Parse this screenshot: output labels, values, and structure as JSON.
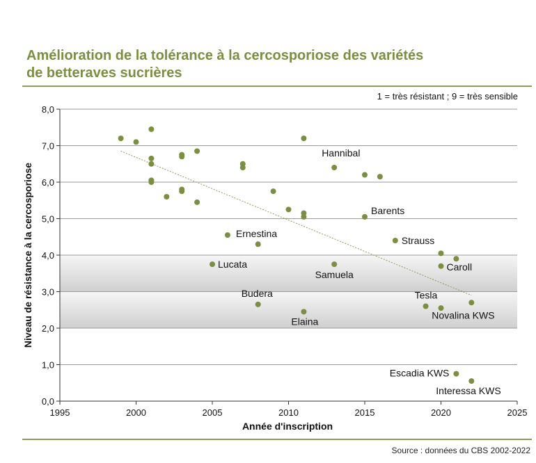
{
  "title_line1": "Amélioration de la tolérance à la cercosporiose des variétés",
  "title_line2": "de betteraves sucrières",
  "note": "1 = très résistant ; 9 = très sensible",
  "source": "Source : données du CBS 2002-2022",
  "colors": {
    "title": "#7b8f3f",
    "point": "#7b8f3f",
    "rule": "#8a9a5b",
    "band": "#cfcfcf",
    "trend": "#8a9a5b"
  },
  "chart_data": {
    "type": "scatter",
    "title": "Amélioration de la tolérance à la cercosporiose des variétés de betteraves sucrières",
    "xlabel": "Année d'inscription",
    "ylabel": "Niveau de résistance à la cercosporiose",
    "xlim": [
      1995,
      2025
    ],
    "ylim": [
      0,
      8
    ],
    "xticks": [
      "1995",
      "2000",
      "2005",
      "2010",
      "2015",
      "2020",
      "2025"
    ],
    "yticks": [
      "0,0",
      "1,0",
      "2,0",
      "3,0",
      "4,0",
      "5,0",
      "6,0",
      "7,0",
      "8,0"
    ],
    "grid": "horizontal",
    "bands": [
      [
        3.0,
        4.0
      ],
      [
        2.0,
        3.0
      ]
    ],
    "trendline": {
      "from": [
        1999,
        6.85
      ],
      "to": [
        2022,
        2.9
      ]
    },
    "points": [
      {
        "x": 1999,
        "y": 7.2,
        "label": ""
      },
      {
        "x": 2000,
        "y": 7.1,
        "label": ""
      },
      {
        "x": 2001,
        "y": 7.45,
        "label": ""
      },
      {
        "x": 2001,
        "y": 6.65,
        "label": ""
      },
      {
        "x": 2001,
        "y": 6.5,
        "label": ""
      },
      {
        "x": 2001,
        "y": 6.05,
        "label": ""
      },
      {
        "x": 2001,
        "y": 6.0,
        "label": ""
      },
      {
        "x": 2002,
        "y": 5.6,
        "label": ""
      },
      {
        "x": 2003,
        "y": 6.75,
        "label": ""
      },
      {
        "x": 2003,
        "y": 6.7,
        "label": ""
      },
      {
        "x": 2003,
        "y": 5.8,
        "label": ""
      },
      {
        "x": 2003,
        "y": 5.75,
        "label": ""
      },
      {
        "x": 2004,
        "y": 6.85,
        "label": ""
      },
      {
        "x": 2004,
        "y": 5.45,
        "label": ""
      },
      {
        "x": 2005,
        "y": 3.75,
        "label": "Lucata"
      },
      {
        "x": 2006,
        "y": 4.55,
        "label": "Ernestina"
      },
      {
        "x": 2007,
        "y": 6.5,
        "label": ""
      },
      {
        "x": 2007,
        "y": 6.4,
        "label": ""
      },
      {
        "x": 2008,
        "y": 4.3,
        "label": ""
      },
      {
        "x": 2008,
        "y": 2.65,
        "label": "Budera"
      },
      {
        "x": 2009,
        "y": 5.75,
        "label": ""
      },
      {
        "x": 2010,
        "y": 5.25,
        "label": ""
      },
      {
        "x": 2011,
        "y": 7.2,
        "label": ""
      },
      {
        "x": 2011,
        "y": 5.15,
        "label": ""
      },
      {
        "x": 2011,
        "y": 5.05,
        "label": ""
      },
      {
        "x": 2011,
        "y": 2.45,
        "label": "Elaina"
      },
      {
        "x": 2013,
        "y": 6.4,
        "label": "Hannibal"
      },
      {
        "x": 2013,
        "y": 3.75,
        "label": "Samuela"
      },
      {
        "x": 2015,
        "y": 6.2,
        "label": ""
      },
      {
        "x": 2015,
        "y": 5.05,
        "label": "Barents"
      },
      {
        "x": 2016,
        "y": 6.15,
        "label": ""
      },
      {
        "x": 2017,
        "y": 4.4,
        "label": "Strauss"
      },
      {
        "x": 2019,
        "y": 2.6,
        "label": "Tesla"
      },
      {
        "x": 2020,
        "y": 4.05,
        "label": ""
      },
      {
        "x": 2020,
        "y": 3.7,
        "label": "Caroll"
      },
      {
        "x": 2020,
        "y": 2.55,
        "label": ""
      },
      {
        "x": 2021,
        "y": 3.9,
        "label": ""
      },
      {
        "x": 2021,
        "y": 0.75,
        "label": "Escadia KWS"
      },
      {
        "x": 2022,
        "y": 2.7,
        "label": "Novalina KWS"
      },
      {
        "x": 2022,
        "y": 0.55,
        "label": "Interessa KWS"
      }
    ]
  }
}
